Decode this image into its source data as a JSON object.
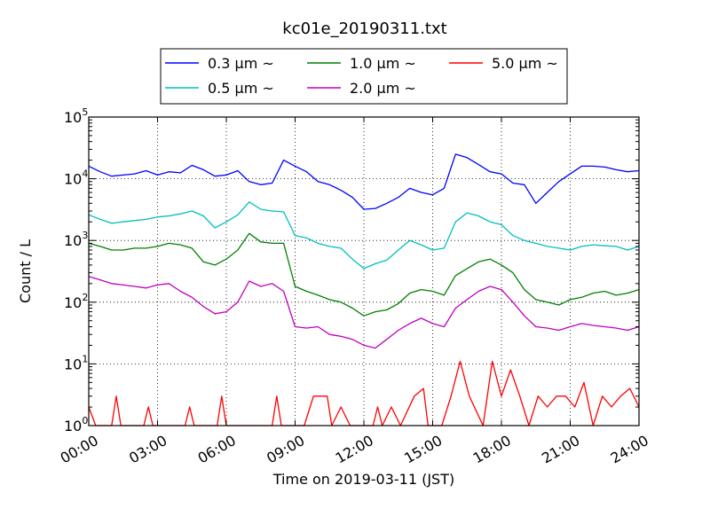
{
  "chart_data": {
    "type": "line",
    "title": "kc01e_20190311.txt",
    "xlabel": "Time on 2019-03-11 (JST)",
    "ylabel": "Count / L",
    "yscale": "log",
    "ylim": [
      1,
      100000
    ],
    "xlim": [
      "00:00",
      "24:00"
    ],
    "x_ticks": [
      "00:00",
      "03:00",
      "06:00",
      "09:00",
      "12:00",
      "15:00",
      "18:00",
      "21:00",
      "24:00"
    ],
    "y_ticks": [
      {
        "base": "10",
        "exp": "0",
        "value": 1
      },
      {
        "base": "10",
        "exp": "1",
        "value": 10
      },
      {
        "base": "10",
        "exp": "2",
        "value": 100
      },
      {
        "base": "10",
        "exp": "3",
        "value": 1000
      },
      {
        "base": "10",
        "exp": "4",
        "value": 10000
      },
      {
        "base": "10",
        "exp": "5",
        "value": 100000
      }
    ],
    "grid": true,
    "legend_position": "top-center",
    "series": [
      {
        "name": "0.3 μm  ~",
        "color": "#0000ff",
        "points": [
          [
            0,
            16000
          ],
          [
            0.5,
            13000
          ],
          [
            1,
            11000
          ],
          [
            1.5,
            11500
          ],
          [
            2,
            12000
          ],
          [
            2.5,
            13500
          ],
          [
            3,
            11500
          ],
          [
            3.5,
            13000
          ],
          [
            4,
            12500
          ],
          [
            4.5,
            16500
          ],
          [
            5,
            14000
          ],
          [
            5.5,
            11000
          ],
          [
            6,
            11500
          ],
          [
            6.5,
            13500
          ],
          [
            7,
            9000
          ],
          [
            7.5,
            8000
          ],
          [
            8,
            8500
          ],
          [
            8.5,
            20000
          ],
          [
            9,
            16000
          ],
          [
            9.5,
            13000
          ],
          [
            10,
            9000
          ],
          [
            10.5,
            8000
          ],
          [
            11,
            6500
          ],
          [
            11.5,
            5000
          ],
          [
            12,
            3200
          ],
          [
            12.5,
            3300
          ],
          [
            13,
            4000
          ],
          [
            13.5,
            5000
          ],
          [
            14,
            7000
          ],
          [
            14.5,
            6000
          ],
          [
            15,
            5500
          ],
          [
            15.5,
            7000
          ],
          [
            16,
            25000
          ],
          [
            16.5,
            22000
          ],
          [
            17,
            17000
          ],
          [
            17.5,
            13000
          ],
          [
            18,
            12000
          ],
          [
            18.5,
            8500
          ],
          [
            19,
            8000
          ],
          [
            19.5,
            4000
          ],
          [
            20,
            6000
          ],
          [
            20.5,
            9000
          ],
          [
            21,
            12000
          ],
          [
            21.5,
            16000
          ],
          [
            22,
            16000
          ],
          [
            22.5,
            15500
          ],
          [
            23,
            14000
          ],
          [
            23.5,
            13000
          ],
          [
            24,
            13500
          ]
        ]
      },
      {
        "name": "0.5 μm  ~",
        "color": "#00bfbf",
        "points": [
          [
            0,
            2600
          ],
          [
            0.5,
            2200
          ],
          [
            1,
            1900
          ],
          [
            1.5,
            2000
          ],
          [
            2,
            2100
          ],
          [
            2.5,
            2200
          ],
          [
            3,
            2400
          ],
          [
            3.5,
            2500
          ],
          [
            4,
            2700
          ],
          [
            4.5,
            3000
          ],
          [
            5,
            2500
          ],
          [
            5.5,
            1600
          ],
          [
            6,
            2000
          ],
          [
            6.5,
            2600
          ],
          [
            7,
            4200
          ],
          [
            7.5,
            3200
          ],
          [
            8,
            3000
          ],
          [
            8.5,
            2900
          ],
          [
            9,
            1200
          ],
          [
            9.5,
            1100
          ],
          [
            10,
            900
          ],
          [
            10.5,
            800
          ],
          [
            11,
            750
          ],
          [
            11.5,
            500
          ],
          [
            12,
            350
          ],
          [
            12.5,
            420
          ],
          [
            13,
            480
          ],
          [
            13.5,
            700
          ],
          [
            14,
            1000
          ],
          [
            14.5,
            850
          ],
          [
            15,
            700
          ],
          [
            15.5,
            750
          ],
          [
            16,
            2000
          ],
          [
            16.5,
            2800
          ],
          [
            17,
            2500
          ],
          [
            17.5,
            2000
          ],
          [
            18,
            1800
          ],
          [
            18.5,
            1200
          ],
          [
            19,
            1000
          ],
          [
            19.5,
            900
          ],
          [
            20,
            800
          ],
          [
            20.5,
            750
          ],
          [
            21,
            700
          ],
          [
            21.5,
            800
          ],
          [
            22,
            850
          ],
          [
            22.5,
            820
          ],
          [
            23,
            800
          ],
          [
            23.5,
            700
          ],
          [
            24,
            800
          ]
        ]
      },
      {
        "name": "1.0 μm  ~",
        "color": "#008000",
        "points": [
          [
            0,
            900
          ],
          [
            0.5,
            800
          ],
          [
            1,
            700
          ],
          [
            1.5,
            700
          ],
          [
            2,
            750
          ],
          [
            2.5,
            750
          ],
          [
            3,
            800
          ],
          [
            3.5,
            900
          ],
          [
            4,
            850
          ],
          [
            4.5,
            750
          ],
          [
            5,
            450
          ],
          [
            5.5,
            400
          ],
          [
            6,
            500
          ],
          [
            6.5,
            700
          ],
          [
            7,
            1300
          ],
          [
            7.5,
            950
          ],
          [
            8,
            900
          ],
          [
            8.5,
            900
          ],
          [
            9,
            180
          ],
          [
            9.5,
            150
          ],
          [
            10,
            130
          ],
          [
            10.5,
            110
          ],
          [
            11,
            100
          ],
          [
            11.5,
            80
          ],
          [
            12,
            60
          ],
          [
            12.5,
            70
          ],
          [
            13,
            75
          ],
          [
            13.5,
            95
          ],
          [
            14,
            140
          ],
          [
            14.5,
            160
          ],
          [
            15,
            150
          ],
          [
            15.5,
            130
          ],
          [
            16,
            270
          ],
          [
            16.5,
            350
          ],
          [
            17,
            450
          ],
          [
            17.5,
            500
          ],
          [
            18,
            400
          ],
          [
            18.5,
            300
          ],
          [
            19,
            160
          ],
          [
            19.5,
            110
          ],
          [
            20,
            100
          ],
          [
            20.5,
            90
          ],
          [
            21,
            110
          ],
          [
            21.5,
            120
          ],
          [
            22,
            140
          ],
          [
            22.5,
            150
          ],
          [
            23,
            130
          ],
          [
            23.5,
            140
          ],
          [
            24,
            160
          ]
        ]
      },
      {
        "name": "2.0 μm  ~",
        "color": "#bf00bf",
        "points": [
          [
            0,
            260
          ],
          [
            0.5,
            230
          ],
          [
            1,
            200
          ],
          [
            1.5,
            190
          ],
          [
            2,
            180
          ],
          [
            2.5,
            170
          ],
          [
            3,
            190
          ],
          [
            3.5,
            200
          ],
          [
            4,
            150
          ],
          [
            4.5,
            120
          ],
          [
            5,
            85
          ],
          [
            5.5,
            65
          ],
          [
            6,
            70
          ],
          [
            6.5,
            100
          ],
          [
            7,
            220
          ],
          [
            7.5,
            180
          ],
          [
            8,
            200
          ],
          [
            8.5,
            150
          ],
          [
            9,
            40
          ],
          [
            9.5,
            38
          ],
          [
            10,
            40
          ],
          [
            10.5,
            30
          ],
          [
            11,
            28
          ],
          [
            11.5,
            25
          ],
          [
            12,
            20
          ],
          [
            12.5,
            18
          ],
          [
            13,
            25
          ],
          [
            13.5,
            35
          ],
          [
            14,
            45
          ],
          [
            14.5,
            55
          ],
          [
            15,
            45
          ],
          [
            15.5,
            40
          ],
          [
            16,
            80
          ],
          [
            16.5,
            110
          ],
          [
            17,
            150
          ],
          [
            17.5,
            180
          ],
          [
            18,
            160
          ],
          [
            18.5,
            100
          ],
          [
            19,
            60
          ],
          [
            19.5,
            40
          ],
          [
            20,
            38
          ],
          [
            20.5,
            35
          ],
          [
            21,
            40
          ],
          [
            21.5,
            45
          ],
          [
            22,
            42
          ],
          [
            22.5,
            40
          ],
          [
            23,
            38
          ],
          [
            23.5,
            35
          ],
          [
            24,
            40
          ]
        ]
      },
      {
        "name": "5.0 μm  ~",
        "color": "#ff0000",
        "points": [
          [
            0,
            2
          ],
          [
            0.3,
            1
          ],
          [
            1,
            1
          ],
          [
            1.2,
            3
          ],
          [
            1.4,
            1
          ],
          [
            2.4,
            1
          ],
          [
            2.6,
            2
          ],
          [
            2.8,
            1
          ],
          [
            4.2,
            1
          ],
          [
            4.4,
            2
          ],
          [
            4.6,
            1
          ],
          [
            5.6,
            1
          ],
          [
            5.8,
            3
          ],
          [
            6,
            1
          ],
          [
            8,
            1
          ],
          [
            8.2,
            3
          ],
          [
            8.4,
            1
          ],
          [
            9.4,
            1
          ],
          [
            9.8,
            3
          ],
          [
            10.4,
            3
          ],
          [
            10.6,
            1
          ],
          [
            11,
            2
          ],
          [
            11.4,
            1
          ],
          [
            12.4,
            1
          ],
          [
            12.6,
            2
          ],
          [
            12.8,
            1
          ],
          [
            13.2,
            2
          ],
          [
            13.6,
            1
          ],
          [
            14.2,
            3
          ],
          [
            14.6,
            4
          ],
          [
            14.8,
            1
          ],
          [
            15.4,
            1
          ],
          [
            15.8,
            3
          ],
          [
            16.2,
            11
          ],
          [
            16.6,
            3
          ],
          [
            17.2,
            1
          ],
          [
            17.6,
            11
          ],
          [
            18,
            3
          ],
          [
            18.4,
            8
          ],
          [
            18.8,
            3
          ],
          [
            19.2,
            1
          ],
          [
            19.6,
            3
          ],
          [
            20,
            2
          ],
          [
            20.4,
            3
          ],
          [
            20.8,
            3
          ],
          [
            21.2,
            2
          ],
          [
            21.6,
            5
          ],
          [
            22,
            1
          ],
          [
            22.4,
            3
          ],
          [
            22.8,
            2
          ],
          [
            23.2,
            3
          ],
          [
            23.6,
            4
          ],
          [
            24,
            2
          ]
        ]
      }
    ]
  }
}
